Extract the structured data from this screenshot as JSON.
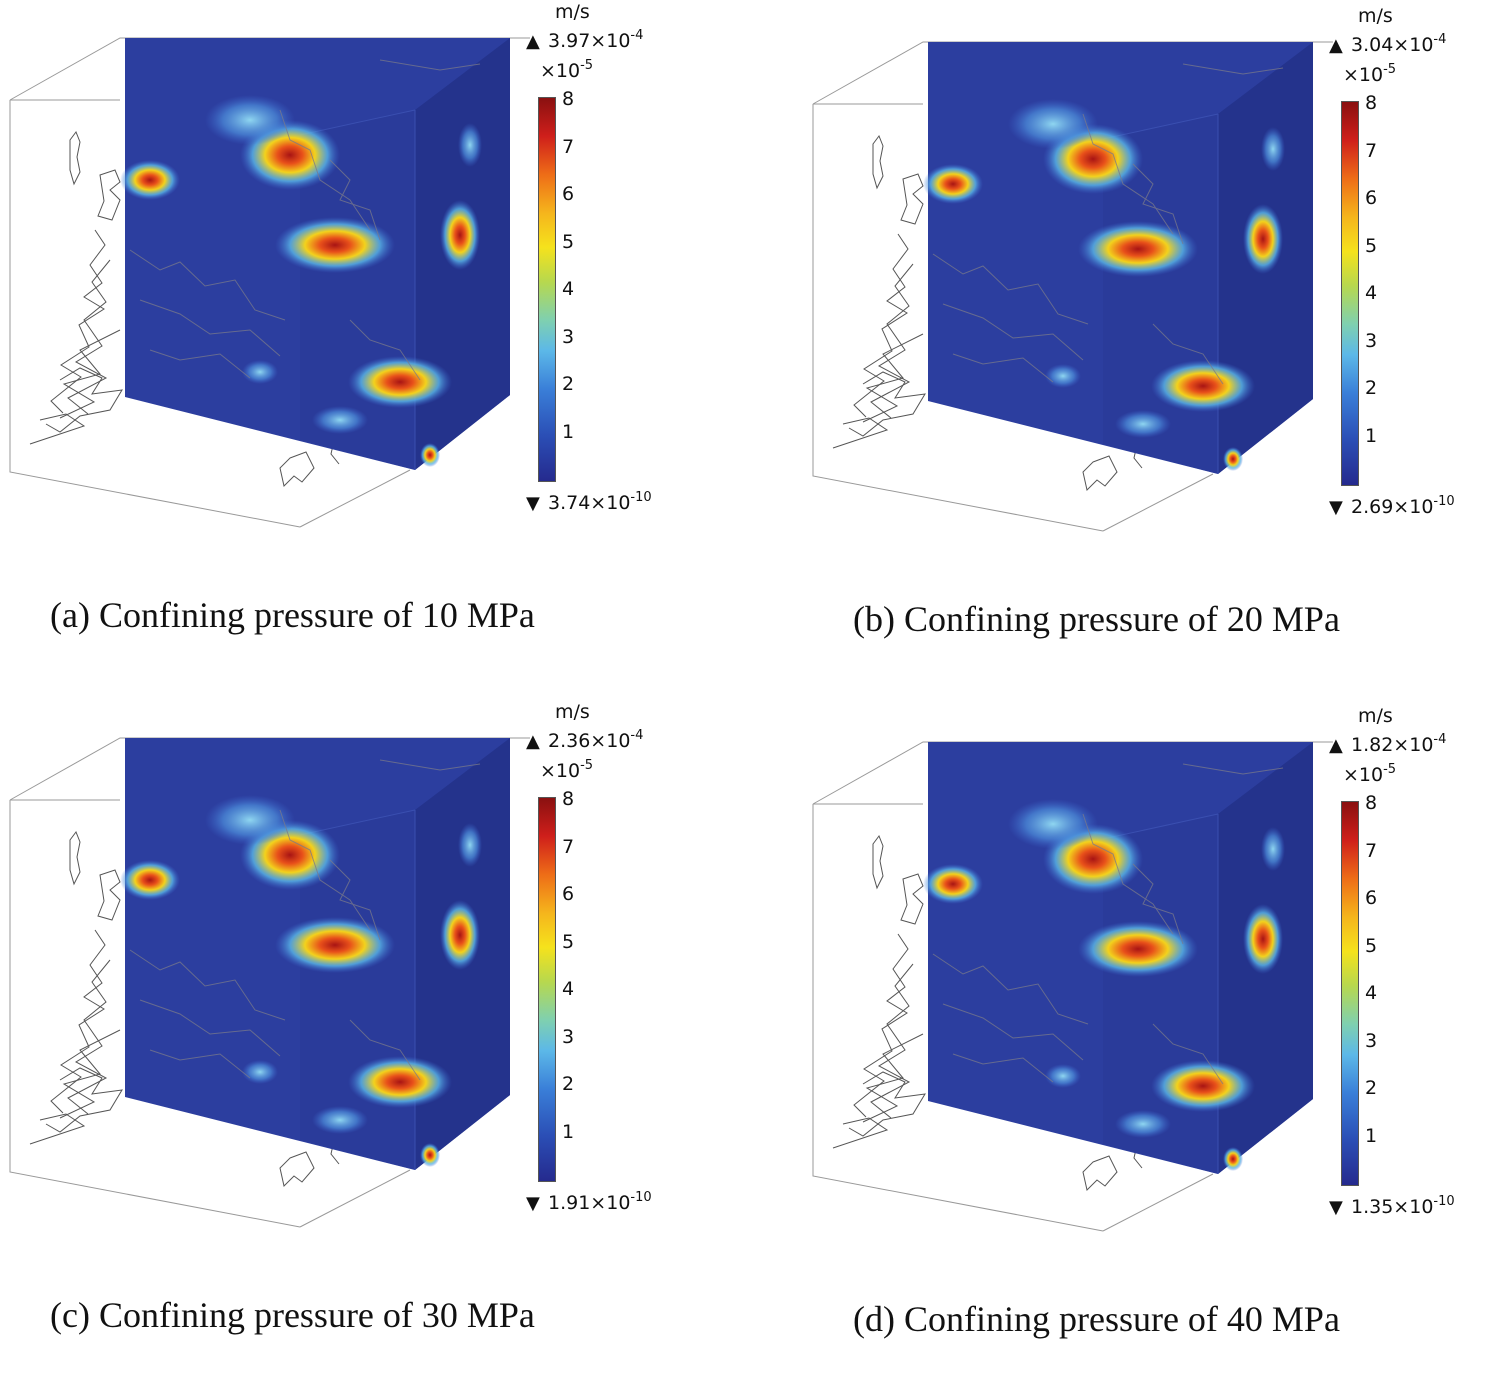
{
  "figure": {
    "panels": [
      {
        "id": "a",
        "caption": "(a) Confining pressure of 10 MPa",
        "legend": {
          "unit": "m/s",
          "max_mantissa": "3.97×10",
          "max_exponent": "-4",
          "scale_mantissa": "×10",
          "scale_exponent": "-5",
          "min_mantissa": "3.74×10",
          "min_exponent": "-10",
          "ticks": [
            "8",
            "7",
            "6",
            "5",
            "4",
            "3",
            "2",
            "1"
          ]
        }
      },
      {
        "id": "b",
        "caption": "(b) Confining pressure of 20 MPa",
        "legend": {
          "unit": "m/s",
          "max_mantissa": "3.04×10",
          "max_exponent": "-4",
          "scale_mantissa": "×10",
          "scale_exponent": "-5",
          "min_mantissa": "2.69×10",
          "min_exponent": "-10",
          "ticks": [
            "8",
            "7",
            "6",
            "5",
            "4",
            "3",
            "2",
            "1"
          ]
        }
      },
      {
        "id": "c",
        "caption": "(c) Confining pressure of 30 MPa",
        "legend": {
          "unit": "m/s",
          "max_mantissa": "2.36×10",
          "max_exponent": "-4",
          "scale_mantissa": "×10",
          "scale_exponent": "-5",
          "min_mantissa": "1.91×10",
          "min_exponent": "-10",
          "ticks": [
            "8",
            "7",
            "6",
            "5",
            "4",
            "3",
            "2",
            "1"
          ]
        }
      },
      {
        "id": "d",
        "caption": "(d) Confining pressure of 40 MPa",
        "legend": {
          "unit": "m/s",
          "max_mantissa": "1.82×10",
          "max_exponent": "-4",
          "scale_mantissa": "×10",
          "scale_exponent": "-5",
          "min_mantissa": "1.35×10",
          "min_exponent": "-10",
          "ticks": [
            "8",
            "7",
            "6",
            "5",
            "4",
            "3",
            "2",
            "1"
          ]
        }
      }
    ],
    "colors": {
      "field_base": "#2d3e9e",
      "hot": "#c81e1e",
      "warm": "#f0c419",
      "cool": "#5ab7e8",
      "frame": "#888888"
    }
  }
}
